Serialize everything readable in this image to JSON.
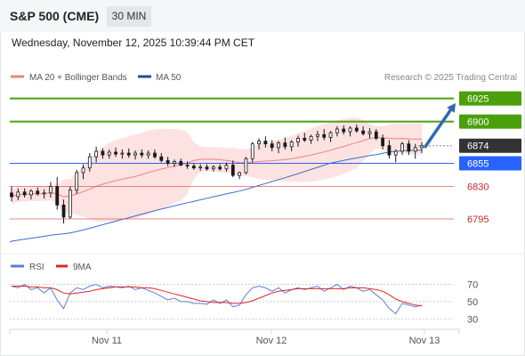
{
  "header": {
    "instrument": "S&P 500 (CME)",
    "interval": "30 MIN"
  },
  "timestamp": "Wednesday, November 12, 2025 10:39:44 PM CET",
  "legend": {
    "bollinger": "MA 20 + Bollinger Bands",
    "ma50": "MA 50",
    "rsi": "RSI",
    "rsi_ma": "9MA"
  },
  "attribution": "Research © 2025 Trading Central",
  "colors": {
    "up_candle": "#ffffff",
    "down_candle": "#1a1a1a",
    "bollinger_line": "#f08080",
    "bollinger_fill": "#fde2e2",
    "ma50": "#3a6fc7",
    "resistance": "#4aa00b",
    "pivot": "#2962ff",
    "support": "#e05555",
    "current": "#333333",
    "arrow": "#2d6ab5",
    "rsi": "#5b7fd6",
    "rsi_ma": "#e02424"
  },
  "chart_data": [
    {
      "type": "candlestick",
      "x_labels": [
        "Nov 11",
        "Nov 12",
        "Nov 13"
      ],
      "ylim": [
        6770,
        6940
      ],
      "levels": [
        {
          "label": "6925",
          "value": 6925,
          "kind": "resistance"
        },
        {
          "label": "6900",
          "value": 6900,
          "kind": "resistance"
        },
        {
          "label": "6874",
          "value": 6874,
          "kind": "current"
        },
        {
          "label": "6855",
          "value": 6855,
          "kind": "pivot"
        },
        {
          "label": "6830",
          "value": 6830,
          "kind": "support"
        },
        {
          "label": "6795",
          "value": 6795,
          "kind": "support"
        }
      ],
      "arrow": {
        "from": 6873,
        "to": 6920,
        "direction": "up"
      },
      "candles": [
        [
          6823,
          6830,
          6814,
          6819
        ],
        [
          6819,
          6828,
          6815,
          6824
        ],
        [
          6824,
          6828,
          6818,
          6821
        ],
        [
          6821,
          6827,
          6816,
          6825
        ],
        [
          6825,
          6829,
          6820,
          6822
        ],
        [
          6822,
          6827,
          6817,
          6823
        ],
        [
          6823,
          6835,
          6818,
          6830
        ],
        [
          6830,
          6840,
          6805,
          6810
        ],
        [
          6810,
          6816,
          6790,
          6797
        ],
        [
          6797,
          6830,
          6795,
          6826
        ],
        [
          6826,
          6848,
          6822,
          6845
        ],
        [
          6845,
          6854,
          6838,
          6850
        ],
        [
          6850,
          6866,
          6846,
          6862
        ],
        [
          6862,
          6873,
          6856,
          6868
        ],
        [
          6868,
          6871,
          6860,
          6864
        ],
        [
          6864,
          6870,
          6860,
          6867
        ],
        [
          6867,
          6872,
          6862,
          6865
        ],
        [
          6865,
          6870,
          6860,
          6866
        ],
        [
          6866,
          6871,
          6861,
          6864
        ],
        [
          6864,
          6869,
          6859,
          6866
        ],
        [
          6866,
          6870,
          6861,
          6864
        ],
        [
          6864,
          6869,
          6860,
          6866
        ],
        [
          6866,
          6870,
          6860,
          6862
        ],
        [
          6862,
          6866,
          6856,
          6858
        ],
        [
          6858,
          6862,
          6852,
          6855
        ],
        [
          6855,
          6859,
          6851,
          6857
        ],
        [
          6857,
          6860,
          6852,
          6853
        ],
        [
          6853,
          6857,
          6849,
          6852
        ],
        [
          6852,
          6855,
          6848,
          6850
        ],
        [
          6850,
          6854,
          6847,
          6851
        ],
        [
          6851,
          6854,
          6847,
          6849
        ],
        [
          6849,
          6853,
          6846,
          6851
        ],
        [
          6851,
          6854,
          6847,
          6849
        ],
        [
          6849,
          6856,
          6846,
          6853
        ],
        [
          6853,
          6858,
          6840,
          6842
        ],
        [
          6842,
          6846,
          6838,
          6845
        ],
        [
          6845,
          6862,
          6843,
          6860
        ],
        [
          6860,
          6878,
          6856,
          6876
        ],
        [
          6876,
          6882,
          6870,
          6879
        ],
        [
          6879,
          6884,
          6872,
          6876
        ],
        [
          6876,
          6880,
          6868,
          6872
        ],
        [
          6872,
          6879,
          6866,
          6877
        ],
        [
          6877,
          6883,
          6870,
          6873
        ],
        [
          6873,
          6880,
          6868,
          6878
        ],
        [
          6878,
          6885,
          6873,
          6882
        ],
        [
          6882,
          6888,
          6878,
          6880
        ],
        [
          6880,
          6886,
          6876,
          6884
        ],
        [
          6884,
          6890,
          6879,
          6886
        ],
        [
          6886,
          6892,
          6880,
          6883
        ],
        [
          6883,
          6890,
          6878,
          6888
        ],
        [
          6888,
          6895,
          6884,
          6892
        ],
        [
          6892,
          6896,
          6886,
          6889
        ],
        [
          6889,
          6895,
          6884,
          6893
        ],
        [
          6893,
          6897,
          6888,
          6890
        ],
        [
          6890,
          6895,
          6885,
          6887
        ],
        [
          6887,
          6893,
          6882,
          6889
        ],
        [
          6889,
          6892,
          6880,
          6882
        ],
        [
          6882,
          6886,
          6870,
          6874
        ],
        [
          6874,
          6880,
          6860,
          6864
        ],
        [
          6864,
          6870,
          6856,
          6868
        ],
        [
          6868,
          6878,
          6864,
          6876
        ],
        [
          6876,
          6880,
          6864,
          6868
        ],
        [
          6868,
          6876,
          6860,
          6872
        ],
        [
          6872,
          6878,
          6866,
          6874
        ]
      ]
    },
    {
      "type": "line",
      "name": "RSI",
      "yticks": [
        30,
        50,
        70
      ],
      "ylim": [
        20,
        85
      ],
      "series": [
        {
          "name": "RSI",
          "values": [
            68,
            66,
            70,
            64,
            66,
            60,
            66,
            52,
            42,
            60,
            66,
            64,
            68,
            70,
            66,
            68,
            67,
            66,
            68,
            64,
            66,
            63,
            60,
            56,
            52,
            54,
            50,
            50,
            48,
            48,
            47,
            52,
            48,
            52,
            44,
            46,
            58,
            66,
            68,
            66,
            62,
            66,
            60,
            64,
            66,
            64,
            66,
            68,
            62,
            66,
            70,
            64,
            68,
            66,
            62,
            64,
            58,
            52,
            42,
            36,
            48,
            46,
            44,
            46
          ]
        },
        {
          "name": "9MA",
          "values": [
            68,
            68,
            68,
            67,
            67,
            66,
            66,
            64,
            60,
            59,
            60,
            61,
            62,
            64,
            65,
            66,
            67,
            67,
            67,
            67,
            66,
            66,
            65,
            63,
            61,
            59,
            57,
            55,
            53,
            51,
            50,
            49,
            49,
            49,
            48,
            48,
            49,
            51,
            54,
            57,
            60,
            62,
            63,
            64,
            65,
            65,
            65,
            65,
            65,
            65,
            65,
            65,
            66,
            66,
            66,
            65,
            64,
            62,
            58,
            53,
            50,
            48,
            46,
            45
          ]
        }
      ]
    }
  ]
}
